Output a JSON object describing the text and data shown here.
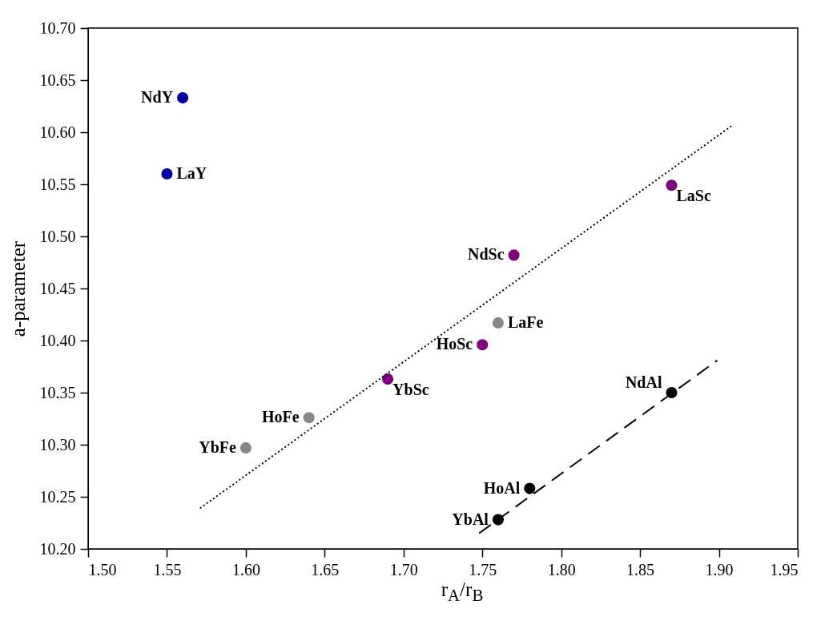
{
  "chart_data": {
    "type": "scatter",
    "xlabel": "r$_{A}$/r$_{B}$",
    "ylabel": "a-parameter",
    "marker": "circle",
    "grid": false,
    "xlim": [
      1.5,
      1.95
    ],
    "xticks": [
      {
        "value": 1.5,
        "label": "1.50"
      },
      {
        "value": 1.55,
        "label": "1.55"
      },
      {
        "value": 1.6,
        "label": "1.60"
      },
      {
        "value": 1.65,
        "label": "1.65"
      },
      {
        "value": 1.7,
        "label": "1.70"
      },
      {
        "value": 1.75,
        "label": "1.75"
      },
      {
        "value": 1.8,
        "label": "1.80"
      },
      {
        "value": 1.85,
        "label": "1.85"
      },
      {
        "value": 1.9,
        "label": "1.90"
      },
      {
        "value": 1.95,
        "label": "1.95"
      }
    ],
    "ylim": [
      10.2,
      10.7
    ],
    "yticks": [
      {
        "value": 10.2,
        "label": "10.20"
      },
      {
        "value": 10.25,
        "label": "10.25"
      },
      {
        "value": 10.3,
        "label": "10.30"
      },
      {
        "value": 10.35,
        "label": "10.35"
      },
      {
        "value": 10.4,
        "label": "10.40"
      },
      {
        "value": 10.45,
        "label": "10.45"
      },
      {
        "value": 10.5,
        "label": "10.50"
      },
      {
        "value": 10.55,
        "label": "10.55"
      },
      {
        "value": 10.6,
        "label": "10.60"
      },
      {
        "value": 10.65,
        "label": "10.65"
      },
      {
        "value": 10.7,
        "label": "10.70"
      }
    ],
    "series": [
      {
        "color": "#0000a0",
        "x": [
          1.56,
          1.55
        ],
        "values": [
          10.633,
          10.56
        ]
      },
      {
        "color": "#800080",
        "x": [
          1.77,
          1.87,
          1.75,
          1.69
        ],
        "values": [
          10.482,
          10.549,
          10.396,
          10.363
        ]
      },
      {
        "color": "#888888",
        "x": [
          1.76,
          1.64,
          1.6
        ],
        "values": [
          10.417,
          10.326,
          10.297
        ]
      },
      {
        "color": "#000000",
        "x": [
          1.87,
          1.78,
          1.76
        ],
        "values": [
          10.35,
          10.258,
          10.228
        ]
      },
      {
        "type": "line",
        "color": "#000000",
        "line_style": "dotted",
        "marker": "none",
        "x": [
          1.571,
          1.908
        ],
        "values": [
          10.239,
          10.606
        ]
      },
      {
        "type": "line",
        "color": "#000000",
        "line_style": "dashed",
        "marker": "none",
        "x": [
          1.748,
          1.899
        ],
        "values": [
          10.215,
          10.381
        ]
      }
    ],
    "annotations": [
      {
        "text": "NdY",
        "x": 1.56,
        "y": 10.633
      },
      {
        "text": "LaY",
        "x": 1.55,
        "y": 10.56
      },
      {
        "text": "NdSc",
        "x": 1.77,
        "y": 10.482
      },
      {
        "text": "LaSc",
        "x": 1.87,
        "y": 10.549
      },
      {
        "text": "LaFe",
        "x": 1.76,
        "y": 10.417
      },
      {
        "text": "HoSc",
        "x": 1.75,
        "y": 10.396
      },
      {
        "text": "YbSc",
        "x": 1.69,
        "y": 10.363
      },
      {
        "text": "HoFe",
        "x": 1.64,
        "y": 10.326
      },
      {
        "text": "YbFe",
        "x": 1.6,
        "y": 10.297
      },
      {
        "text": "NdAl",
        "x": 1.87,
        "y": 10.35
      },
      {
        "text": "HoAl",
        "x": 1.78,
        "y": 10.258
      },
      {
        "text": "YbAl",
        "x": 1.76,
        "y": 10.228
      }
    ]
  }
}
